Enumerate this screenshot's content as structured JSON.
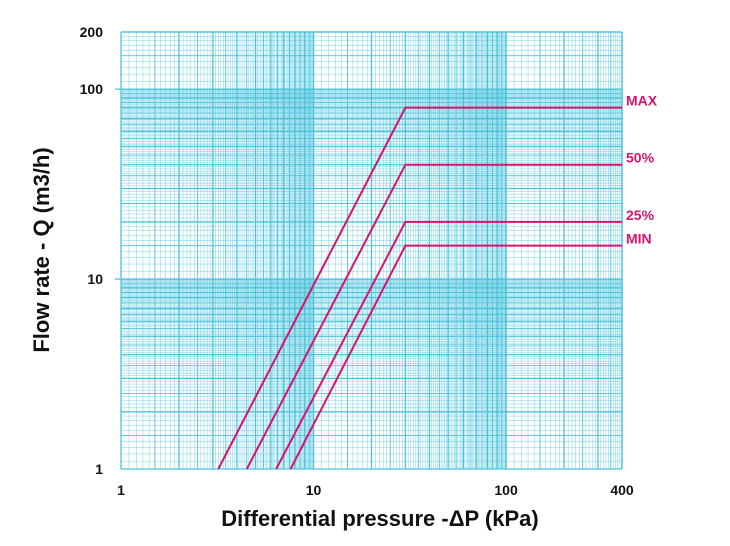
{
  "colors": {
    "grid": "#4cc3dc",
    "series": "#d6146e",
    "text": "#111111"
  },
  "chart_data": {
    "type": "line",
    "title": "",
    "xlabel": "Differential pressure -ΔP (kPa)",
    "ylabel": "Flow rate - Q (m3/h)",
    "xscale": "log",
    "yscale": "log",
    "xlim": [
      1,
      400
    ],
    "ylim": [
      1,
      200
    ],
    "grid": true,
    "x_ticks": [
      {
        "value": 1,
        "label": "1"
      },
      {
        "value": 10,
        "label": "10"
      },
      {
        "value": 100,
        "label": "100"
      },
      {
        "value": 400,
        "label": "400"
      }
    ],
    "y_ticks": [
      {
        "value": 1,
        "label": "1"
      },
      {
        "value": 10,
        "label": "10"
      },
      {
        "value": 100,
        "label": "100"
      },
      {
        "value": 200,
        "label": "200"
      }
    ],
    "series": [
      {
        "name": "MAX",
        "x": [
          3.2,
          30,
          400
        ],
        "y": [
          1,
          80,
          80
        ]
      },
      {
        "name": "50%",
        "x": [
          4.5,
          30,
          400
        ],
        "y": [
          1,
          40,
          40
        ]
      },
      {
        "name": "25%",
        "x": [
          6.4,
          30,
          400
        ],
        "y": [
          1,
          20,
          20
        ]
      },
      {
        "name": "MIN",
        "x": [
          7.6,
          30,
          400
        ],
        "y": [
          1,
          15,
          15
        ]
      }
    ]
  }
}
